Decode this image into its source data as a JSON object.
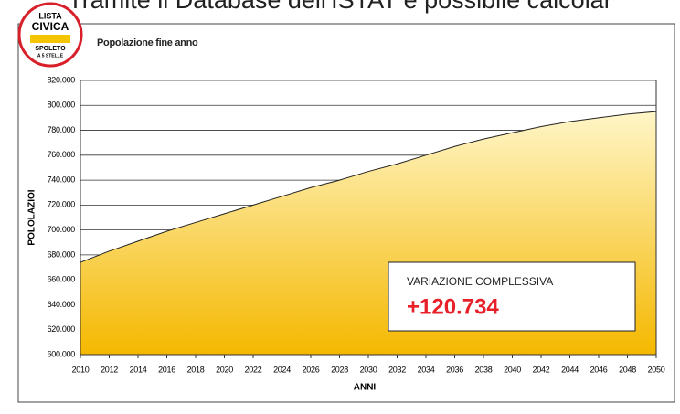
{
  "header": {
    "text": "Tramite il Database dell'ISTAT è possibile calcolar"
  },
  "logo": {
    "line1": "LISTA",
    "line2": "CIVICA",
    "line3": "SPOLETO",
    "line4": "A 5 STELLE"
  },
  "chart_data": {
    "type": "area",
    "title": "Popolazione fine anno",
    "x_label": "ANNI",
    "y_label": "POLOLAZIOI",
    "x": [
      2010,
      2012,
      2014,
      2016,
      2018,
      2020,
      2022,
      2024,
      2026,
      2028,
      2030,
      2032,
      2034,
      2036,
      2038,
      2040,
      2042,
      2044,
      2046,
      2048,
      2050
    ],
    "series": [
      {
        "name": "Popolazione",
        "color": "#f5b800",
        "values": [
          674000,
          683000,
          691000,
          699000,
          706000,
          713000,
          720000,
          727000,
          734000,
          740000,
          747000,
          753000,
          760000,
          767000,
          773000,
          778000,
          783000,
          787000,
          790000,
          793000,
          795000
        ]
      }
    ],
    "xlim": [
      2010,
      2050
    ],
    "xticks": [
      2010,
      2012,
      2014,
      2016,
      2018,
      2020,
      2022,
      2024,
      2026,
      2028,
      2030,
      2032,
      2034,
      2036,
      2038,
      2040,
      2042,
      2044,
      2046,
      2048,
      2050
    ],
    "ylim": [
      600000,
      820000
    ],
    "yticks": [
      {
        "value": 600000,
        "label": "600.000"
      },
      {
        "value": 620000,
        "label": "620.000"
      },
      {
        "value": 640000,
        "label": "640.000"
      },
      {
        "value": 660000,
        "label": "660.000"
      },
      {
        "value": 680000,
        "label": "680.000"
      },
      {
        "value": 700000,
        "label": "700.000"
      },
      {
        "value": 720000,
        "label": "720.000"
      },
      {
        "value": 740000,
        "label": "740.000"
      },
      {
        "value": 760000,
        "label": "760.000"
      },
      {
        "value": 780000,
        "label": "780.000"
      },
      {
        "value": 800000,
        "label": "800.000"
      },
      {
        "value": 820000,
        "label": "820.000"
      }
    ],
    "grid": true,
    "annotation": {
      "title": "VARIAZIONE COMPLESSIVA",
      "value": "+120.734",
      "color": "#e8202a"
    }
  }
}
